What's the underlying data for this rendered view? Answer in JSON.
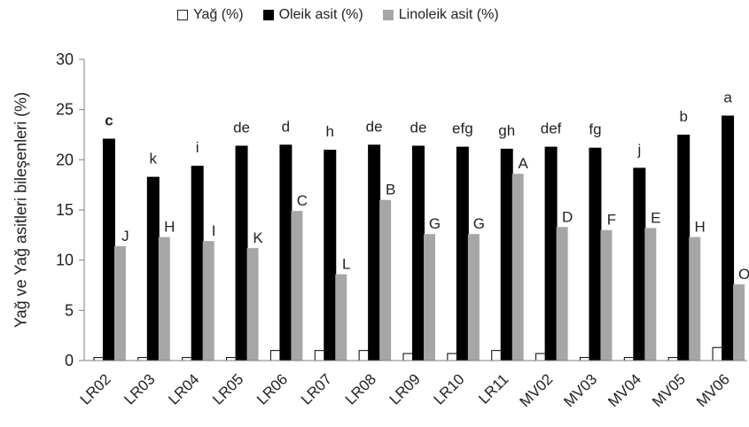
{
  "chart_data": {
    "type": "bar",
    "categories": [
      "LR02",
      "LR03",
      "LR04",
      "LR05",
      "LR06",
      "LR07",
      "LR08",
      "LR09",
      "LR10",
      "LR11",
      "MV02",
      "MV03",
      "MV04",
      "MV05",
      "MV06"
    ],
    "series": [
      {
        "name": "Yağ (%)",
        "color": "#ffffff",
        "values": [
          0.3,
          0.3,
          0.3,
          0.3,
          1.0,
          1.0,
          1.0,
          0.7,
          0.7,
          1.0,
          0.7,
          0.3,
          0.3,
          0.3,
          1.3
        ],
        "labels": []
      },
      {
        "name": "Oleik asit (%)",
        "color": "#000000",
        "values": [
          22.1,
          18.3,
          19.4,
          21.4,
          21.5,
          21.0,
          21.5,
          21.4,
          21.3,
          21.1,
          21.3,
          21.2,
          19.2,
          22.5,
          24.4
        ],
        "labels": [
          "c",
          "k",
          "i",
          "de",
          "d",
          "h",
          "de",
          "de",
          "efg",
          "gh",
          "def",
          "fg",
          "j",
          "b",
          "a"
        ]
      },
      {
        "name": "Linoleik asit (%)",
        "color": "#a6a6a6",
        "values": [
          11.4,
          12.3,
          11.9,
          11.2,
          14.9,
          8.6,
          16.0,
          12.6,
          12.6,
          18.6,
          13.3,
          13.0,
          13.2,
          12.3,
          7.6
        ],
        "labels": [
          "J",
          "H",
          "I",
          "K",
          "C",
          "L",
          "B",
          "G",
          "G",
          "A",
          "D",
          "F",
          "E",
          "H",
          "O"
        ]
      }
    ],
    "ylabel": "Yağ ve Yağ asitleri bileşenleri (%)",
    "xlabel": "",
    "ylim": [
      0,
      30
    ],
    "yticks": [
      "0",
      "5",
      "10",
      "15",
      "20",
      "25",
      "30"
    ],
    "grid": false,
    "legend_position": "top"
  }
}
